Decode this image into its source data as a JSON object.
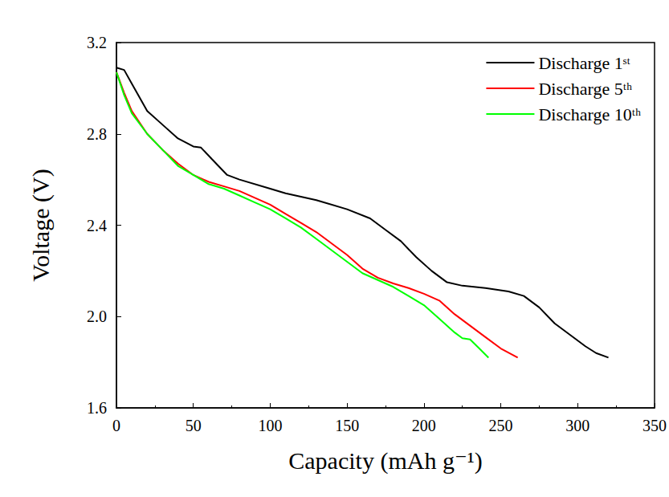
{
  "chart_data": {
    "type": "line",
    "x_label": "Capacity (mAh g⁻¹)",
    "y_label": "Voltage (V)",
    "xlim": [
      0,
      350
    ],
    "xticks": [
      0,
      50,
      100,
      150,
      200,
      250,
      300,
      350
    ],
    "ylim": [
      1.6,
      3.2
    ],
    "yticks": [
      1.6,
      {
        "value": 2,
        "label": "2.0"
      },
      2.4,
      2.8,
      3.2
    ],
    "grid": false,
    "legend": "upper right",
    "series": [
      {
        "name": "Discharge 1ˢᵗ",
        "color": "#000000",
        "x": [
          0,
          5,
          10,
          20,
          30,
          40,
          50,
          55,
          62,
          72,
          80,
          100,
          110,
          130,
          150,
          165,
          175,
          185,
          195,
          205,
          215,
          225,
          240,
          255,
          265,
          275,
          285,
          295,
          305,
          312,
          320
        ],
        "values": [
          3.09,
          3.08,
          3.02,
          2.9,
          2.84,
          2.78,
          2.745,
          2.74,
          2.69,
          2.62,
          2.6,
          2.56,
          2.54,
          2.51,
          2.47,
          2.43,
          2.38,
          2.33,
          2.26,
          2.2,
          2.15,
          2.135,
          2.125,
          2.11,
          2.09,
          2.04,
          1.97,
          1.92,
          1.87,
          1.84,
          1.82
        ]
      },
      {
        "name": "Discharge 5ᵗʰ",
        "color": "#ff0000",
        "x": [
          0,
          5,
          10,
          20,
          30,
          40,
          50,
          60,
          70,
          80,
          90,
          100,
          110,
          120,
          130,
          140,
          150,
          160,
          170,
          180,
          190,
          200,
          210,
          220,
          230,
          240,
          250,
          261
        ],
        "values": [
          3.07,
          2.98,
          2.9,
          2.8,
          2.73,
          2.67,
          2.62,
          2.59,
          2.57,
          2.55,
          2.52,
          2.49,
          2.45,
          2.41,
          2.37,
          2.32,
          2.27,
          2.21,
          2.17,
          2.145,
          2.125,
          2.1,
          2.07,
          2.01,
          1.96,
          1.91,
          1.86,
          1.82
        ]
      },
      {
        "name": "Discharge 10ᵗʰ",
        "color": "#00ff00",
        "x": [
          0,
          5,
          10,
          20,
          30,
          40,
          50,
          60,
          70,
          80,
          90,
          100,
          110,
          120,
          130,
          140,
          150,
          160,
          170,
          180,
          190,
          200,
          210,
          220,
          225,
          230,
          236,
          242
        ],
        "values": [
          3.07,
          2.97,
          2.89,
          2.8,
          2.73,
          2.66,
          2.62,
          2.58,
          2.56,
          2.53,
          2.5,
          2.47,
          2.43,
          2.39,
          2.34,
          2.29,
          2.24,
          2.19,
          2.16,
          2.13,
          2.09,
          2.05,
          1.99,
          1.93,
          1.905,
          1.9,
          1.86,
          1.82
        ]
      }
    ]
  }
}
